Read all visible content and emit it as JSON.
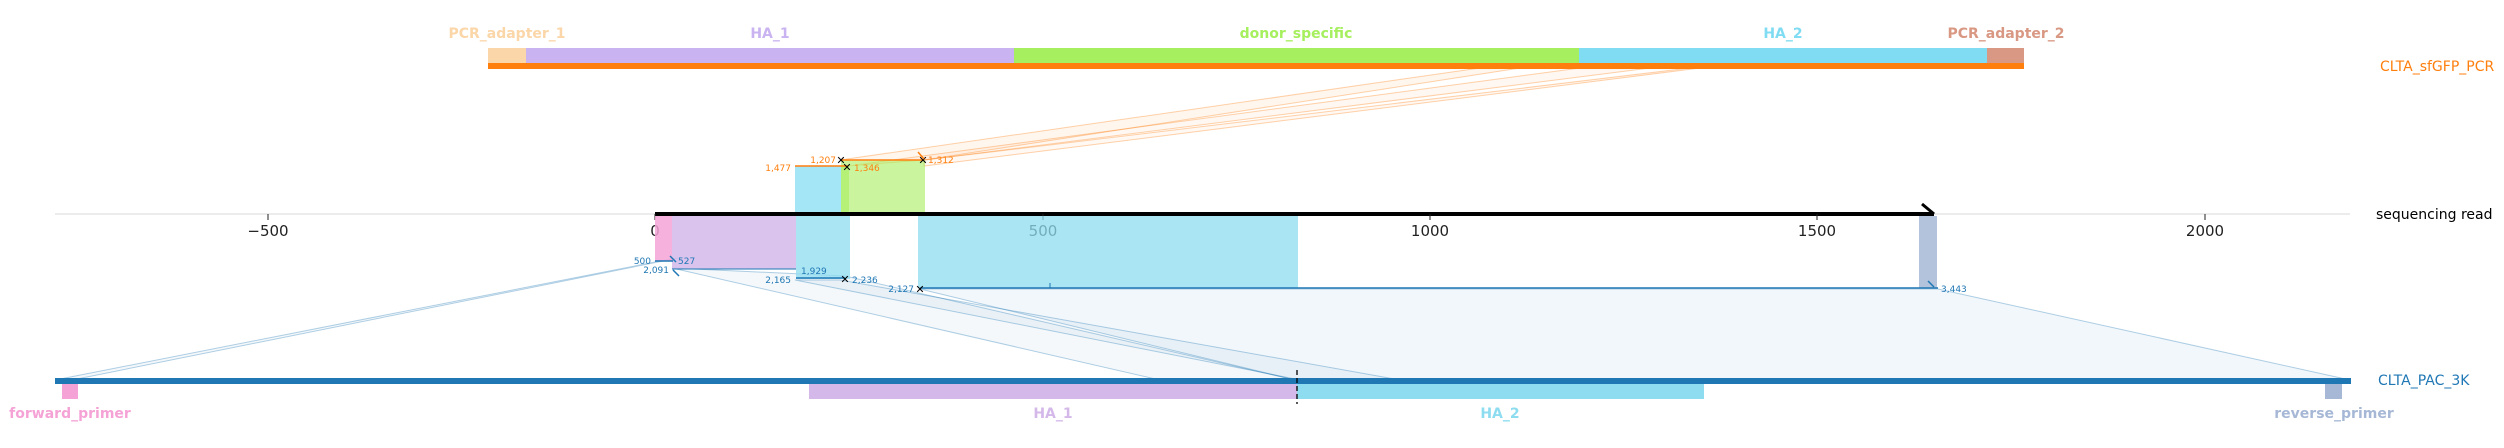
{
  "top_ref": {
    "name": "CLTA_sfGFP_PCR",
    "color": "#ff7f0e",
    "features": [
      {
        "label": "PCR_adapter_1",
        "color": "#fbd6a8"
      },
      {
        "label": "HA_1",
        "color": "#c9b3f0"
      },
      {
        "label": "donor_specific",
        "color": "#a6ef5e"
      },
      {
        "label": "HA_2",
        "color": "#7fdcf2"
      },
      {
        "label": "PCR_adapter_2",
        "color": "#d99883"
      }
    ]
  },
  "read": {
    "name": "sequencing read",
    "ticks": [
      "−500",
      "0",
      "500",
      "1000",
      "1500",
      "2000"
    ],
    "top_annotations": [
      "1,477",
      "1,207",
      "1,346",
      "1,312"
    ],
    "bottom_annotations": [
      "500",
      "527",
      "2,091",
      "1,929",
      "2,165",
      "2,236",
      "2,127",
      "3,443"
    ]
  },
  "bottom_ref": {
    "name": "CLTA_PAC_3K",
    "color": "#1f77b4",
    "features": [
      {
        "label": "forward_primer",
        "color": "#f5a3d6"
      },
      {
        "label": "HA_1",
        "color": "#d4b8ea"
      },
      {
        "label": "HA_2",
        "color": "#8ddcf0"
      },
      {
        "label": "reverse_primer",
        "color": "#a6b8d6"
      }
    ]
  }
}
